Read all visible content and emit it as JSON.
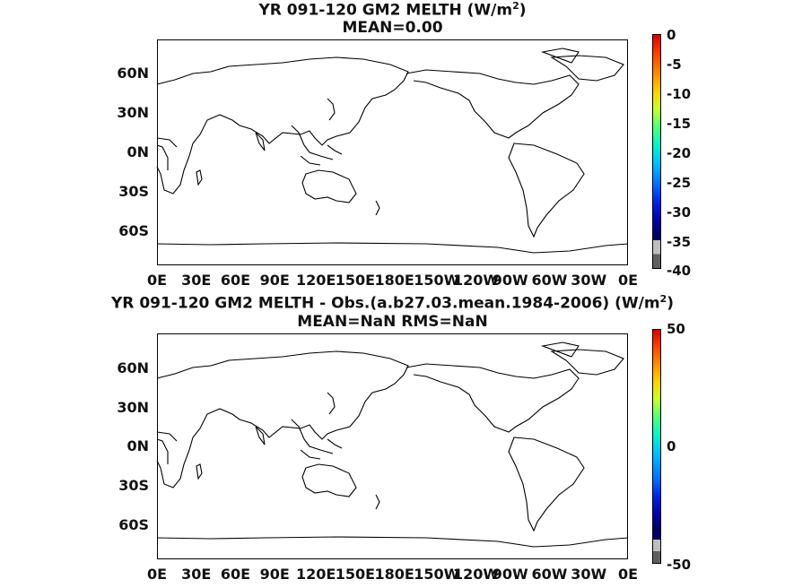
{
  "panels": [
    {
      "title_main": "YR 091-120 GM2  MELTH (W/m",
      "title_sup": "2",
      "title_close": ")",
      "subtitle": "MEAN=0.00",
      "y_labels": [
        "60N",
        "30N",
        "0N",
        "30S",
        "60S"
      ],
      "x_labels": [
        "0E",
        "30E",
        "60E",
        "90E",
        "120E",
        "150E",
        "180E",
        "150W",
        "120W",
        "90W",
        "60W",
        "30W",
        "0E"
      ],
      "colorbar_labels": [
        "0",
        "-5",
        "-10",
        "-15",
        "-20",
        "-25",
        "-30",
        "-35",
        "-40"
      ]
    },
    {
      "title_main": "YR 091-120 GM2 MELTH - Obs.(a.b27.03.mean.1984-2006) (W/m",
      "title_sup": "2",
      "title_close": ")",
      "subtitle": "MEAN=NaN RMS=NaN",
      "y_labels": [
        "60N",
        "30N",
        "0N",
        "30S",
        "60S"
      ],
      "x_labels": [
        "0E",
        "30E",
        "60E",
        "90E",
        "120E",
        "150E",
        "180E",
        "150W",
        "120W",
        "90W",
        "60W",
        "30W",
        "0E"
      ],
      "colorbar_labels": [
        "50",
        "0",
        "-50"
      ]
    }
  ],
  "colors": {
    "coastline": "#000000",
    "missing_gray": "#bebebe",
    "missing_dark": "#606060"
  }
}
